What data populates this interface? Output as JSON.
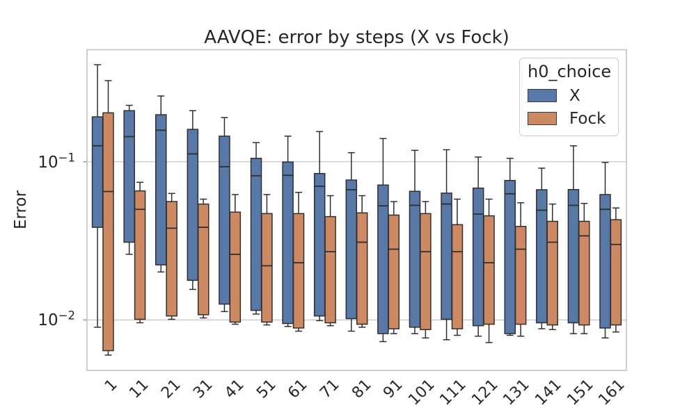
{
  "title": "AAVQE: error by steps (X vs Fock)",
  "axes": {
    "ylabel": "Error",
    "yticks": [
      {
        "base": "10",
        "exp": "−1",
        "value": 0.1
      },
      {
        "base": "10",
        "exp": "−2",
        "value": 0.01
      }
    ],
    "text_color": "#262626",
    "grid_color": "#cccccc",
    "frame_color": "#c9c9c9"
  },
  "legend": {
    "title": "h0_choice",
    "entries": [
      {
        "label": "X",
        "color": "#5878a8"
      },
      {
        "label": "Fock",
        "color": "#cd8a62"
      }
    ]
  },
  "chart_data": {
    "type": "boxplot",
    "title": "AAVQE: error by steps (X vs Fock)",
    "xlabel": "",
    "ylabel": "Error",
    "yscale": "log",
    "ylim": [
      0.0048,
      0.51
    ],
    "grid": "horizontal-major",
    "legend_title": "h0_choice",
    "legend_position": "upper-right",
    "box_edge_color": "#2f2f2f",
    "categories": [
      "1",
      "11",
      "21",
      "31",
      "41",
      "51",
      "61",
      "71",
      "81",
      "91",
      "101",
      "111",
      "121",
      "131",
      "141",
      "151",
      "161"
    ],
    "series": [
      {
        "name": "X",
        "color": "#5878a8",
        "boxes": [
          {
            "whislo": 0.009,
            "q1": 0.0385,
            "med": 0.126,
            "q3": 0.192,
            "whishi": 0.41
          },
          {
            "whislo": 0.026,
            "q1": 0.031,
            "med": 0.144,
            "q3": 0.21,
            "whishi": 0.227
          },
          {
            "whislo": 0.0201,
            "q1": 0.0223,
            "med": 0.158,
            "q3": 0.198,
            "whishi": 0.26
          },
          {
            "whislo": 0.0156,
            "q1": 0.0178,
            "med": 0.112,
            "q3": 0.16,
            "whishi": 0.21
          },
          {
            "whislo": 0.0113,
            "q1": 0.0126,
            "med": 0.093,
            "q3": 0.145,
            "whishi": 0.19
          },
          {
            "whislo": 0.0109,
            "q1": 0.0115,
            "med": 0.0815,
            "q3": 0.105,
            "whishi": 0.132
          },
          {
            "whislo": 0.0091,
            "q1": 0.0095,
            "med": 0.082,
            "q3": 0.0995,
            "whishi": 0.145
          },
          {
            "whislo": 0.0099,
            "q1": 0.0106,
            "med": 0.07,
            "q3": 0.0842,
            "whishi": 0.155
          },
          {
            "whislo": 0.0085,
            "q1": 0.0102,
            "med": 0.0665,
            "q3": 0.0766,
            "whishi": 0.114
          },
          {
            "whislo": 0.0073,
            "q1": 0.0082,
            "med": 0.0526,
            "q3": 0.0712,
            "whishi": 0.14
          },
          {
            "whislo": 0.0082,
            "q1": 0.009,
            "med": 0.053,
            "q3": 0.065,
            "whishi": 0.118
          },
          {
            "whislo": 0.0075,
            "q1": 0.0101,
            "med": 0.054,
            "q3": 0.0633,
            "whishi": 0.119
          },
          {
            "whislo": 0.0079,
            "q1": 0.0092,
            "med": 0.0467,
            "q3": 0.0681,
            "whishi": 0.107
          },
          {
            "whislo": 0.008,
            "q1": 0.0082,
            "med": 0.0627,
            "q3": 0.0761,
            "whishi": 0.105
          },
          {
            "whislo": 0.0088,
            "q1": 0.0096,
            "med": 0.0494,
            "q3": 0.0665,
            "whishi": 0.091
          },
          {
            "whislo": 0.0082,
            "q1": 0.0096,
            "med": 0.053,
            "q3": 0.0667,
            "whishi": 0.126
          },
          {
            "whislo": 0.0077,
            "q1": 0.0089,
            "med": 0.05,
            "q3": 0.062,
            "whishi": 0.099
          }
        ]
      },
      {
        "name": "Fock",
        "color": "#cd8a62",
        "boxes": [
          {
            "whislo": 0.006,
            "q1": 0.0064,
            "med": 0.0648,
            "q3": 0.2035,
            "whishi": 0.325
          },
          {
            "whislo": 0.0096,
            "q1": 0.0101,
            "med": 0.05,
            "q3": 0.0654,
            "whishi": 0.0741
          },
          {
            "whislo": 0.0101,
            "q1": 0.0106,
            "med": 0.038,
            "q3": 0.056,
            "whishi": 0.063
          },
          {
            "whislo": 0.0103,
            "q1": 0.0108,
            "med": 0.0385,
            "q3": 0.054,
            "whishi": 0.058
          },
          {
            "whislo": 0.0094,
            "q1": 0.0097,
            "med": 0.026,
            "q3": 0.048,
            "whishi": 0.062
          },
          {
            "whislo": 0.0093,
            "q1": 0.0097,
            "med": 0.022,
            "q3": 0.047,
            "whishi": 0.062
          },
          {
            "whislo": 0.0085,
            "q1": 0.0089,
            "med": 0.023,
            "q3": 0.047,
            "whishi": 0.064
          },
          {
            "whislo": 0.0092,
            "q1": 0.0096,
            "med": 0.027,
            "q3": 0.045,
            "whishi": 0.061
          },
          {
            "whislo": 0.009,
            "q1": 0.0094,
            "med": 0.031,
            "q3": 0.0475,
            "whishi": 0.061
          },
          {
            "whislo": 0.0082,
            "q1": 0.0088,
            "med": 0.028,
            "q3": 0.046,
            "whishi": 0.056
          },
          {
            "whislo": 0.0077,
            "q1": 0.0087,
            "med": 0.027,
            "q3": 0.047,
            "whishi": 0.056
          },
          {
            "whislo": 0.008,
            "q1": 0.0088,
            "med": 0.027,
            "q3": 0.04,
            "whishi": 0.058
          },
          {
            "whislo": 0.0072,
            "q1": 0.0094,
            "med": 0.023,
            "q3": 0.0455,
            "whishi": 0.058
          },
          {
            "whislo": 0.0079,
            "q1": 0.0094,
            "med": 0.028,
            "q3": 0.039,
            "whishi": 0.055
          },
          {
            "whislo": 0.0087,
            "q1": 0.0093,
            "med": 0.031,
            "q3": 0.042,
            "whishi": 0.054
          },
          {
            "whislo": 0.0082,
            "q1": 0.0093,
            "med": 0.034,
            "q3": 0.042,
            "whishi": 0.0545
          },
          {
            "whislo": 0.0084,
            "q1": 0.0093,
            "med": 0.03,
            "q3": 0.043,
            "whishi": 0.051
          }
        ]
      }
    ]
  }
}
